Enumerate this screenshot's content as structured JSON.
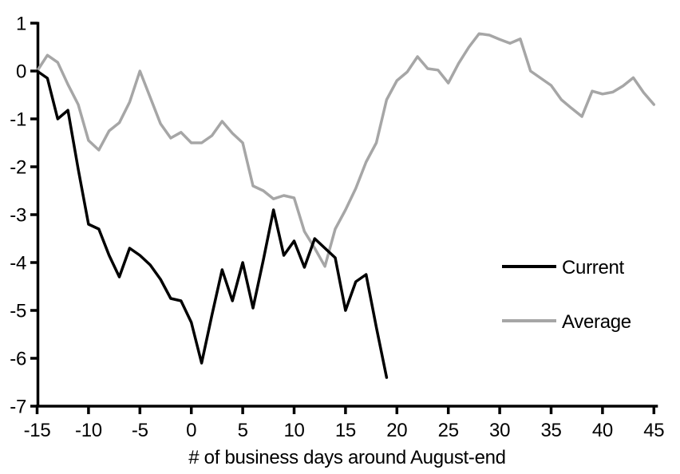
{
  "chart_data": {
    "type": "line",
    "title": "",
    "xlabel": "# of business days around August-end",
    "ylabel": "",
    "xlim": [
      -15,
      45
    ],
    "ylim": [
      -7,
      1
    ],
    "x_ticks": [
      -15,
      -10,
      -5,
      0,
      5,
      10,
      15,
      20,
      25,
      30,
      35,
      40,
      45
    ],
    "y_ticks": [
      1,
      0,
      -1,
      -2,
      -3,
      -4,
      -5,
      -6,
      -7
    ],
    "grid": false,
    "axis_color": "#000000",
    "legend_position": "right-middle",
    "series": [
      {
        "name": "Current",
        "color": "#000000",
        "x_start": -15,
        "x_step": 1,
        "values": [
          0,
          -0.15,
          -1.0,
          -0.82,
          -2.05,
          -3.2,
          -3.3,
          -3.85,
          -4.3,
          -3.7,
          -3.85,
          -4.05,
          -4.35,
          -4.75,
          -4.8,
          -5.25,
          -6.1,
          -5.1,
          -4.15,
          -4.8,
          -4.0,
          -4.95,
          -3.95,
          -2.9,
          -3.85,
          -3.55,
          -4.1,
          -3.5,
          -3.7,
          -3.9,
          -5.0,
          -4.4,
          -4.25,
          -5.35,
          -6.4
        ]
      },
      {
        "name": "Average",
        "color": "#a6a6a6",
        "x_start": -15,
        "x_step": 1,
        "values": [
          0,
          0.33,
          0.18,
          -0.28,
          -0.7,
          -1.45,
          -1.65,
          -1.25,
          -1.08,
          -0.65,
          0.0,
          -0.55,
          -1.1,
          -1.4,
          -1.28,
          -1.5,
          -1.5,
          -1.35,
          -1.05,
          -1.3,
          -1.5,
          -2.4,
          -2.5,
          -2.67,
          -2.6,
          -2.65,
          -3.35,
          -3.7,
          -4.08,
          -3.3,
          -2.9,
          -2.45,
          -1.9,
          -1.5,
          -0.6,
          -0.2,
          -0.02,
          0.3,
          0.05,
          0.02,
          -0.25,
          0.16,
          0.5,
          0.78,
          0.75,
          0.66,
          0.58,
          0.67,
          0.0,
          -0.15,
          -0.3,
          -0.6,
          -0.78,
          -0.95,
          -0.42,
          -0.48,
          -0.44,
          -0.31,
          -0.14,
          -0.45,
          -0.7
        ]
      }
    ]
  }
}
